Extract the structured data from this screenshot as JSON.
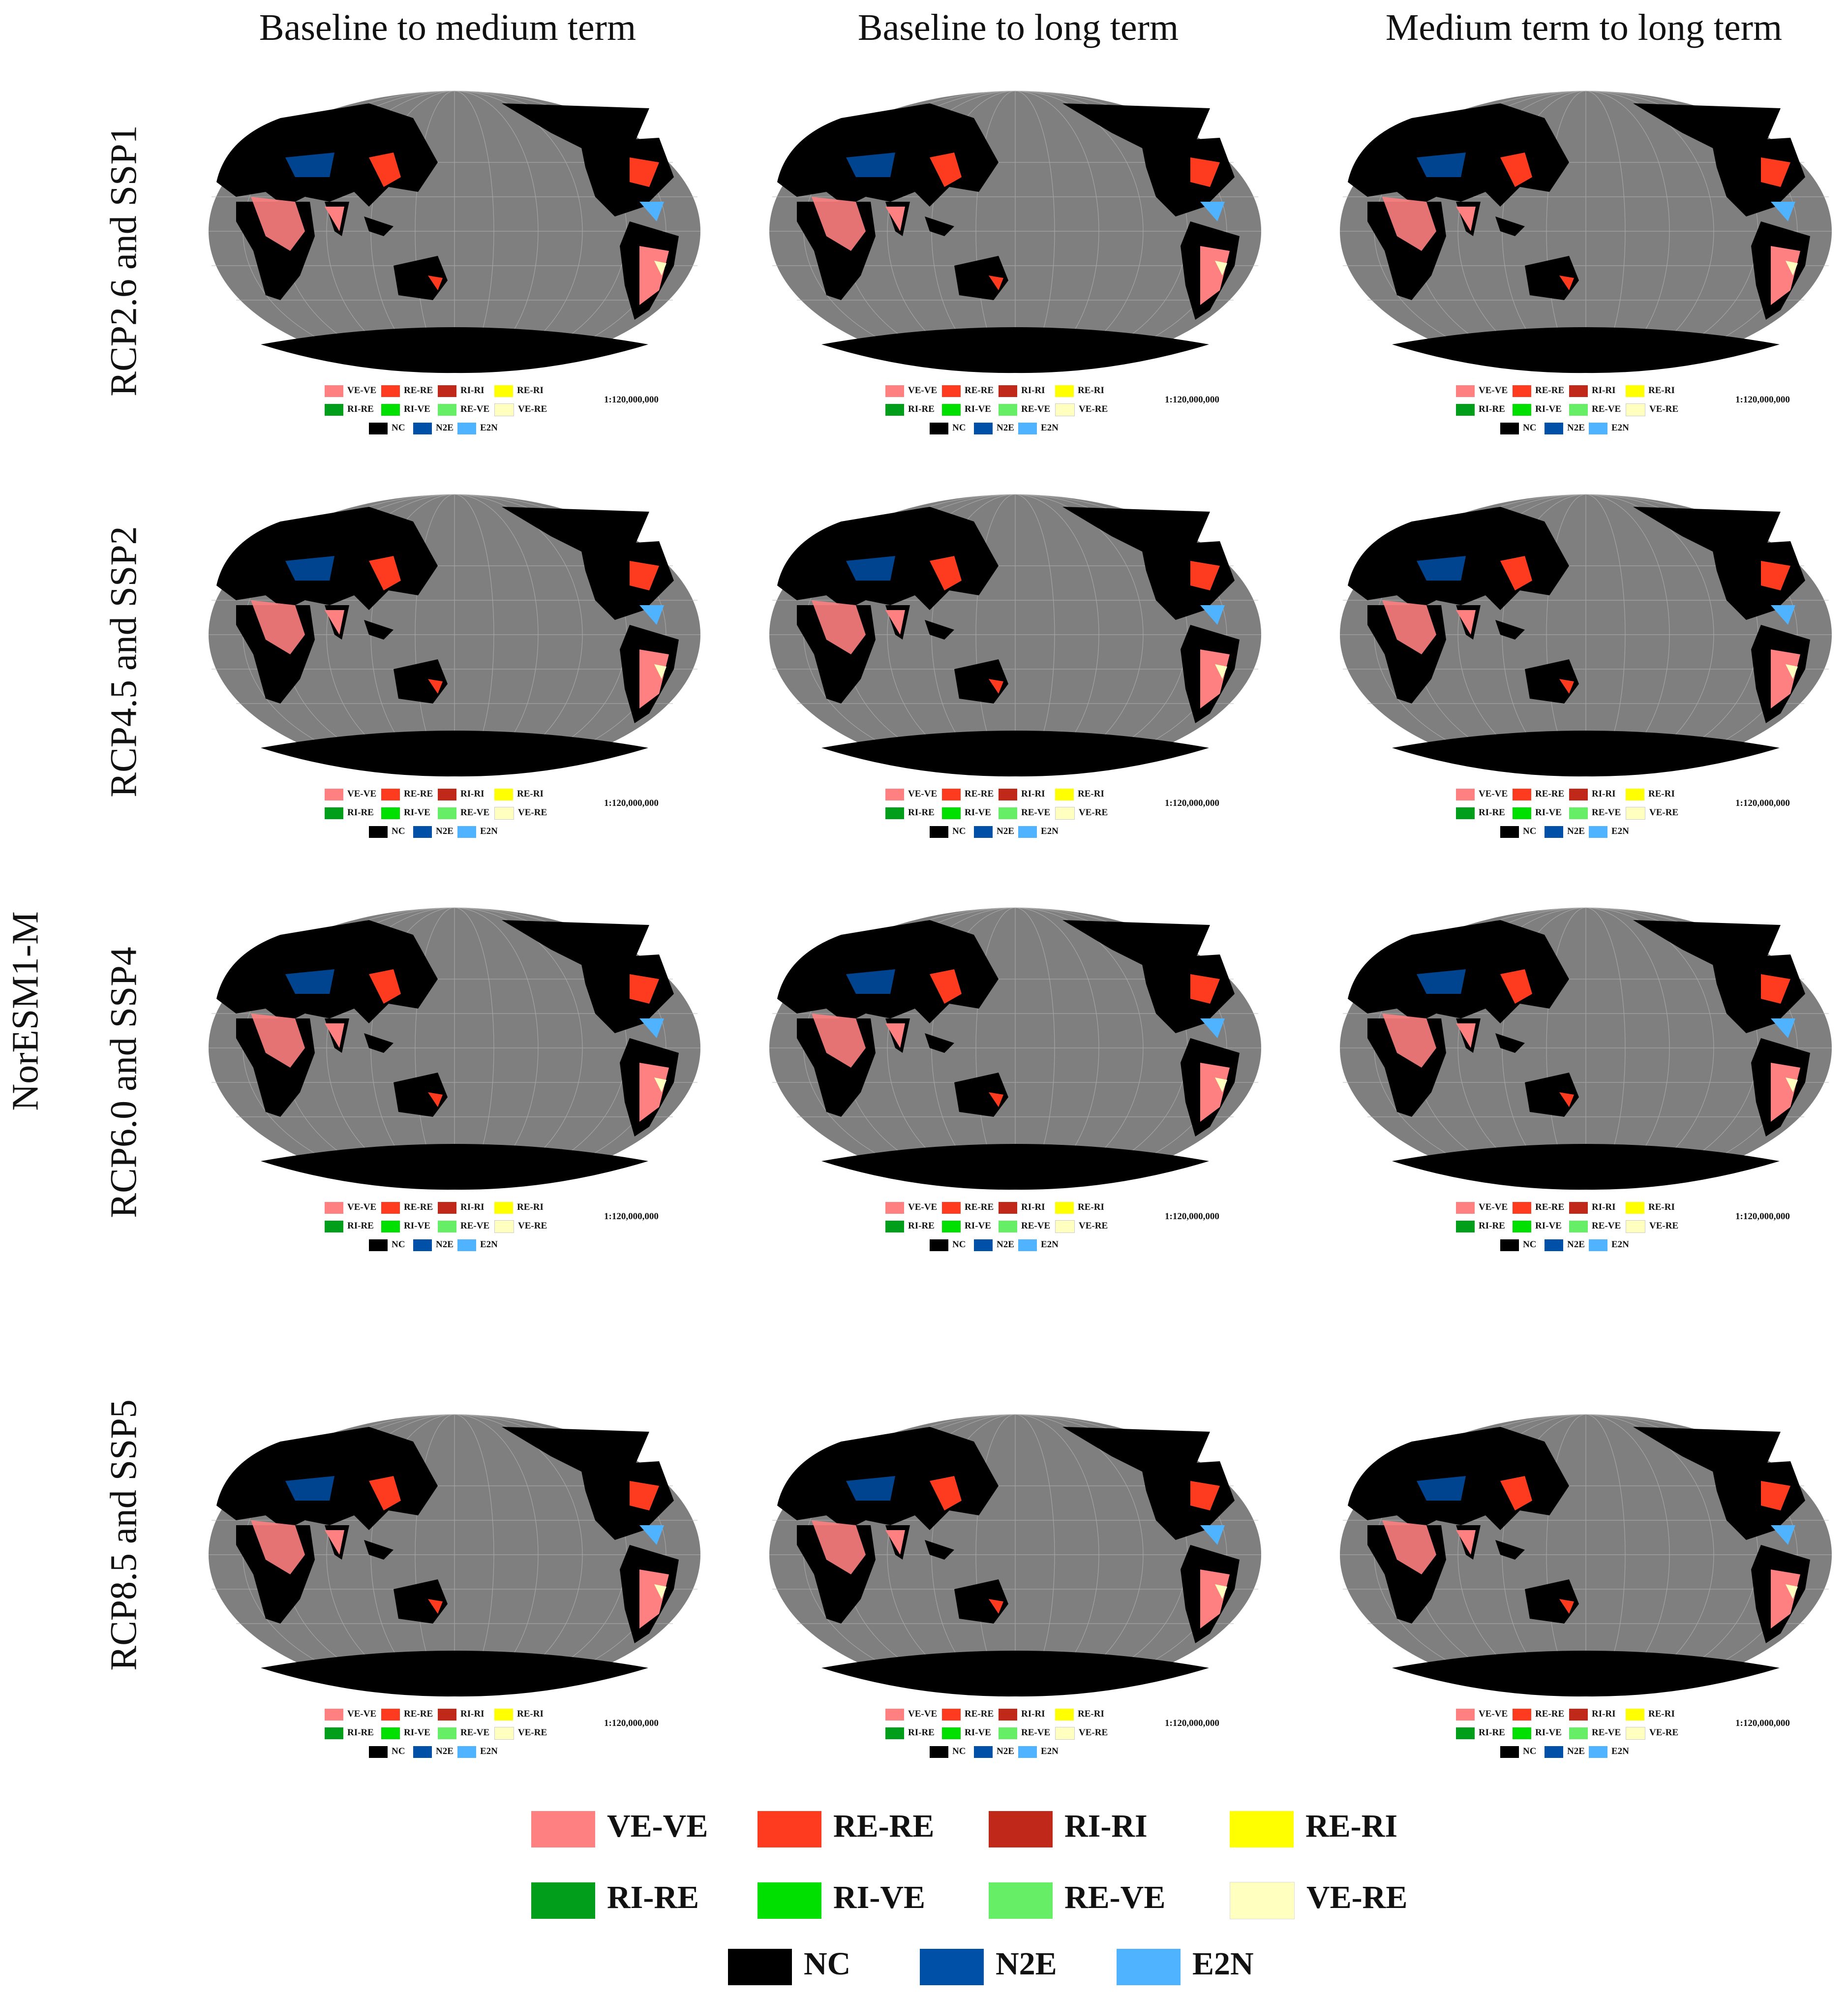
{
  "figure": {
    "model_label": "NorESM1-M",
    "columns": [
      "Baseline to medium term",
      "Baseline to long term",
      "Medium term to long term"
    ],
    "rows": [
      "RCP2.6 and SSP1",
      "RCP4.5 and SSP2",
      "RCP6.0 and SSP4",
      "RCP8.5 and SSP5"
    ],
    "scale": "1:120,000,000",
    "background_colors": {
      "ocean": "#7f7f7f",
      "land_unchanged": "#000000"
    }
  },
  "legend": [
    {
      "code": "VE-VE",
      "color": "#ff8080"
    },
    {
      "code": "RE-RE",
      "color": "#ff3b1f"
    },
    {
      "code": "RI-RI",
      "color": "#c0281a"
    },
    {
      "code": "RE-RI",
      "color": "#ffff00"
    },
    {
      "code": "RI-RE",
      "color": "#009e1a"
    },
    {
      "code": "RI-VE",
      "color": "#00e000"
    },
    {
      "code": "RE-VE",
      "color": "#66ee66"
    },
    {
      "code": "VE-RE",
      "color": "#ffffc0"
    },
    {
      "code": "NC",
      "color": "#000000"
    },
    {
      "code": "N2E",
      "color": "#0050a8"
    },
    {
      "code": "E2N",
      "color": "#4fb3ff"
    }
  ]
}
